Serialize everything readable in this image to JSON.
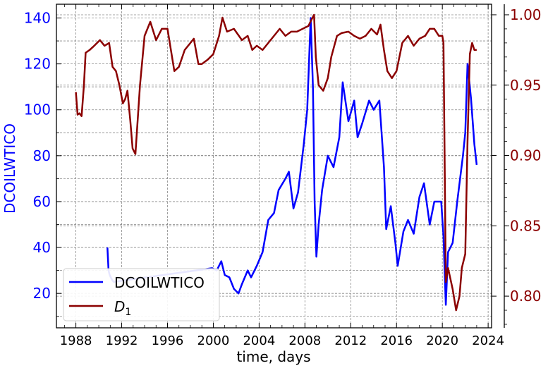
{
  "chart_data": {
    "type": "line",
    "xlabel": "time, days",
    "ylabel_left": "DCOILWTICO",
    "ylabel_right": "",
    "xlim": [
      1986.3,
      2024.3
    ],
    "ylim_left": [
      5,
      146
    ],
    "ylim_right": [
      0.7775,
      1.0075
    ],
    "xticks": [
      1988,
      1992,
      1996,
      2000,
      2004,
      2008,
      2012,
      2016,
      2020,
      2024
    ],
    "xtick_labels": [
      "1988",
      "1992",
      "1996",
      "2000",
      "2004",
      "2008",
      "2012",
      "2016",
      "2020",
      "2024"
    ],
    "yticks_left": [
      20,
      40,
      60,
      80,
      100,
      120,
      140
    ],
    "ytick_labels_left": [
      "20",
      "40",
      "60",
      "80",
      "100",
      "120",
      "140"
    ],
    "yticks_right": [
      0.8,
      0.85,
      0.9,
      0.95,
      1.0
    ],
    "ytick_labels_right": [
      "0.80",
      "0.85",
      "0.90",
      "0.95",
      "1.00"
    ],
    "grid": true,
    "legend_position": "lower-left",
    "colors": {
      "left_axis": "#0000ff",
      "right_axis": "#8b0000",
      "grid": "#888888"
    },
    "series": [
      {
        "name": "DCOILWTICO",
        "axis": "left",
        "color": "#0000ff",
        "x": [
          1990.75,
          1990.85,
          1990.95,
          1991.05,
          1991.15,
          1991.3,
          1999.9,
          2000.3,
          2000.7,
          2001.0,
          2001.4,
          2001.8,
          2002.2,
          2002.5,
          2003.0,
          2003.3,
          2003.8,
          2004.3,
          2004.8,
          2005.3,
          2005.7,
          2006.3,
          2006.6,
          2007.0,
          2007.4,
          2007.9,
          2008.2,
          2008.5,
          2008.7,
          2008.85,
          2009.0,
          2009.2,
          2009.5,
          2010.0,
          2010.5,
          2011.0,
          2011.3,
          2011.8,
          2012.3,
          2012.6,
          2013.0,
          2013.6,
          2014.0,
          2014.5,
          2014.9,
          2015.1,
          2015.5,
          2015.9,
          2016.1,
          2016.6,
          2017.0,
          2017.5,
          2018.0,
          2018.4,
          2018.9,
          2019.3,
          2019.9,
          2020.1,
          2020.3,
          2020.5,
          2020.9,
          2021.3,
          2021.8,
          2022.0,
          2022.2,
          2022.5,
          2022.8,
          2023.0
        ],
        "y": [
          40,
          30,
          28,
          27,
          26,
          25,
          31,
          30,
          34,
          28,
          27,
          22,
          20,
          24,
          30,
          27,
          32,
          38,
          52,
          55,
          65,
          70,
          73,
          57,
          64,
          85,
          100,
          140,
          110,
          60,
          36,
          50,
          65,
          80,
          75,
          88,
          112,
          95,
          104,
          88,
          94,
          104,
          100,
          104,
          75,
          48,
          58,
          42,
          32,
          47,
          52,
          46,
          62,
          68,
          50,
          60,
          60,
          45,
          15,
          38,
          42,
          60,
          80,
          90,
          120,
          105,
          85,
          76
        ]
      },
      {
        "name": "D_1",
        "axis": "right",
        "color": "#8b0000",
        "x": [
          1988.0,
          1988.15,
          1988.3,
          1988.5,
          1988.7,
          1988.85,
          1989.2,
          1989.6,
          1990.1,
          1990.5,
          1990.9,
          1991.2,
          1991.5,
          1991.8,
          1992.1,
          1992.3,
          1992.5,
          1992.75,
          1992.95,
          1993.2,
          1993.6,
          1994.0,
          1994.5,
          1995.0,
          1995.5,
          1996.0,
          1996.2,
          1996.6,
          1997.0,
          1997.5,
          1998.0,
          1998.3,
          1998.7,
          1999.0,
          1999.5,
          2000.0,
          2000.5,
          2000.8,
          2001.2,
          2001.8,
          2002.5,
          2003.0,
          2003.4,
          2003.8,
          2004.3,
          2004.8,
          2005.3,
          2005.8,
          2006.3,
          2006.8,
          2007.3,
          2007.8,
          2008.3,
          2008.6,
          2008.8,
          2008.95,
          2009.2,
          2009.6,
          2010.0,
          2010.3,
          2010.8,
          2011.2,
          2011.8,
          2012.3,
          2012.8,
          2013.3,
          2013.8,
          2014.3,
          2014.6,
          2014.9,
          2015.2,
          2015.6,
          2016.0,
          2016.5,
          2017.0,
          2017.5,
          2018.0,
          2018.5,
          2018.9,
          2019.3,
          2019.7,
          2020.0,
          2020.1,
          2020.2,
          2020.3,
          2020.5,
          2020.9,
          2021.2,
          2021.5,
          2021.7,
          2022.0,
          2022.2,
          2022.4,
          2022.6,
          2022.8,
          2023.0
        ],
        "y": [
          0.945,
          0.929,
          0.93,
          0.928,
          0.95,
          0.973,
          0.975,
          0.978,
          0.982,
          0.978,
          0.98,
          0.963,
          0.96,
          0.95,
          0.937,
          0.94,
          0.946,
          0.925,
          0.905,
          0.901,
          0.95,
          0.985,
          0.995,
          0.982,
          0.99,
          0.99,
          0.98,
          0.96,
          0.963,
          0.975,
          0.98,
          0.983,
          0.965,
          0.965,
          0.968,
          0.972,
          0.985,
          0.998,
          0.988,
          0.99,
          0.982,
          0.985,
          0.975,
          0.978,
          0.975,
          0.98,
          0.985,
          0.99,
          0.985,
          0.988,
          0.988,
          0.99,
          0.992,
          0.997,
          1.0,
          0.97,
          0.95,
          0.946,
          0.955,
          0.97,
          0.985,
          0.987,
          0.988,
          0.985,
          0.983,
          0.985,
          0.99,
          0.986,
          0.993,
          0.975,
          0.96,
          0.955,
          0.96,
          0.98,
          0.985,
          0.978,
          0.983,
          0.985,
          0.99,
          0.99,
          0.985,
          0.985,
          0.98,
          0.9,
          0.81,
          0.82,
          0.805,
          0.79,
          0.8,
          0.82,
          0.83,
          0.91,
          0.972,
          0.98,
          0.975,
          0.975
        ]
      }
    ],
    "legend": [
      {
        "label": "DCOILWTICO",
        "series": 0
      },
      {
        "label_main": "D",
        "label_sub": "1",
        "series": 1
      }
    ]
  }
}
